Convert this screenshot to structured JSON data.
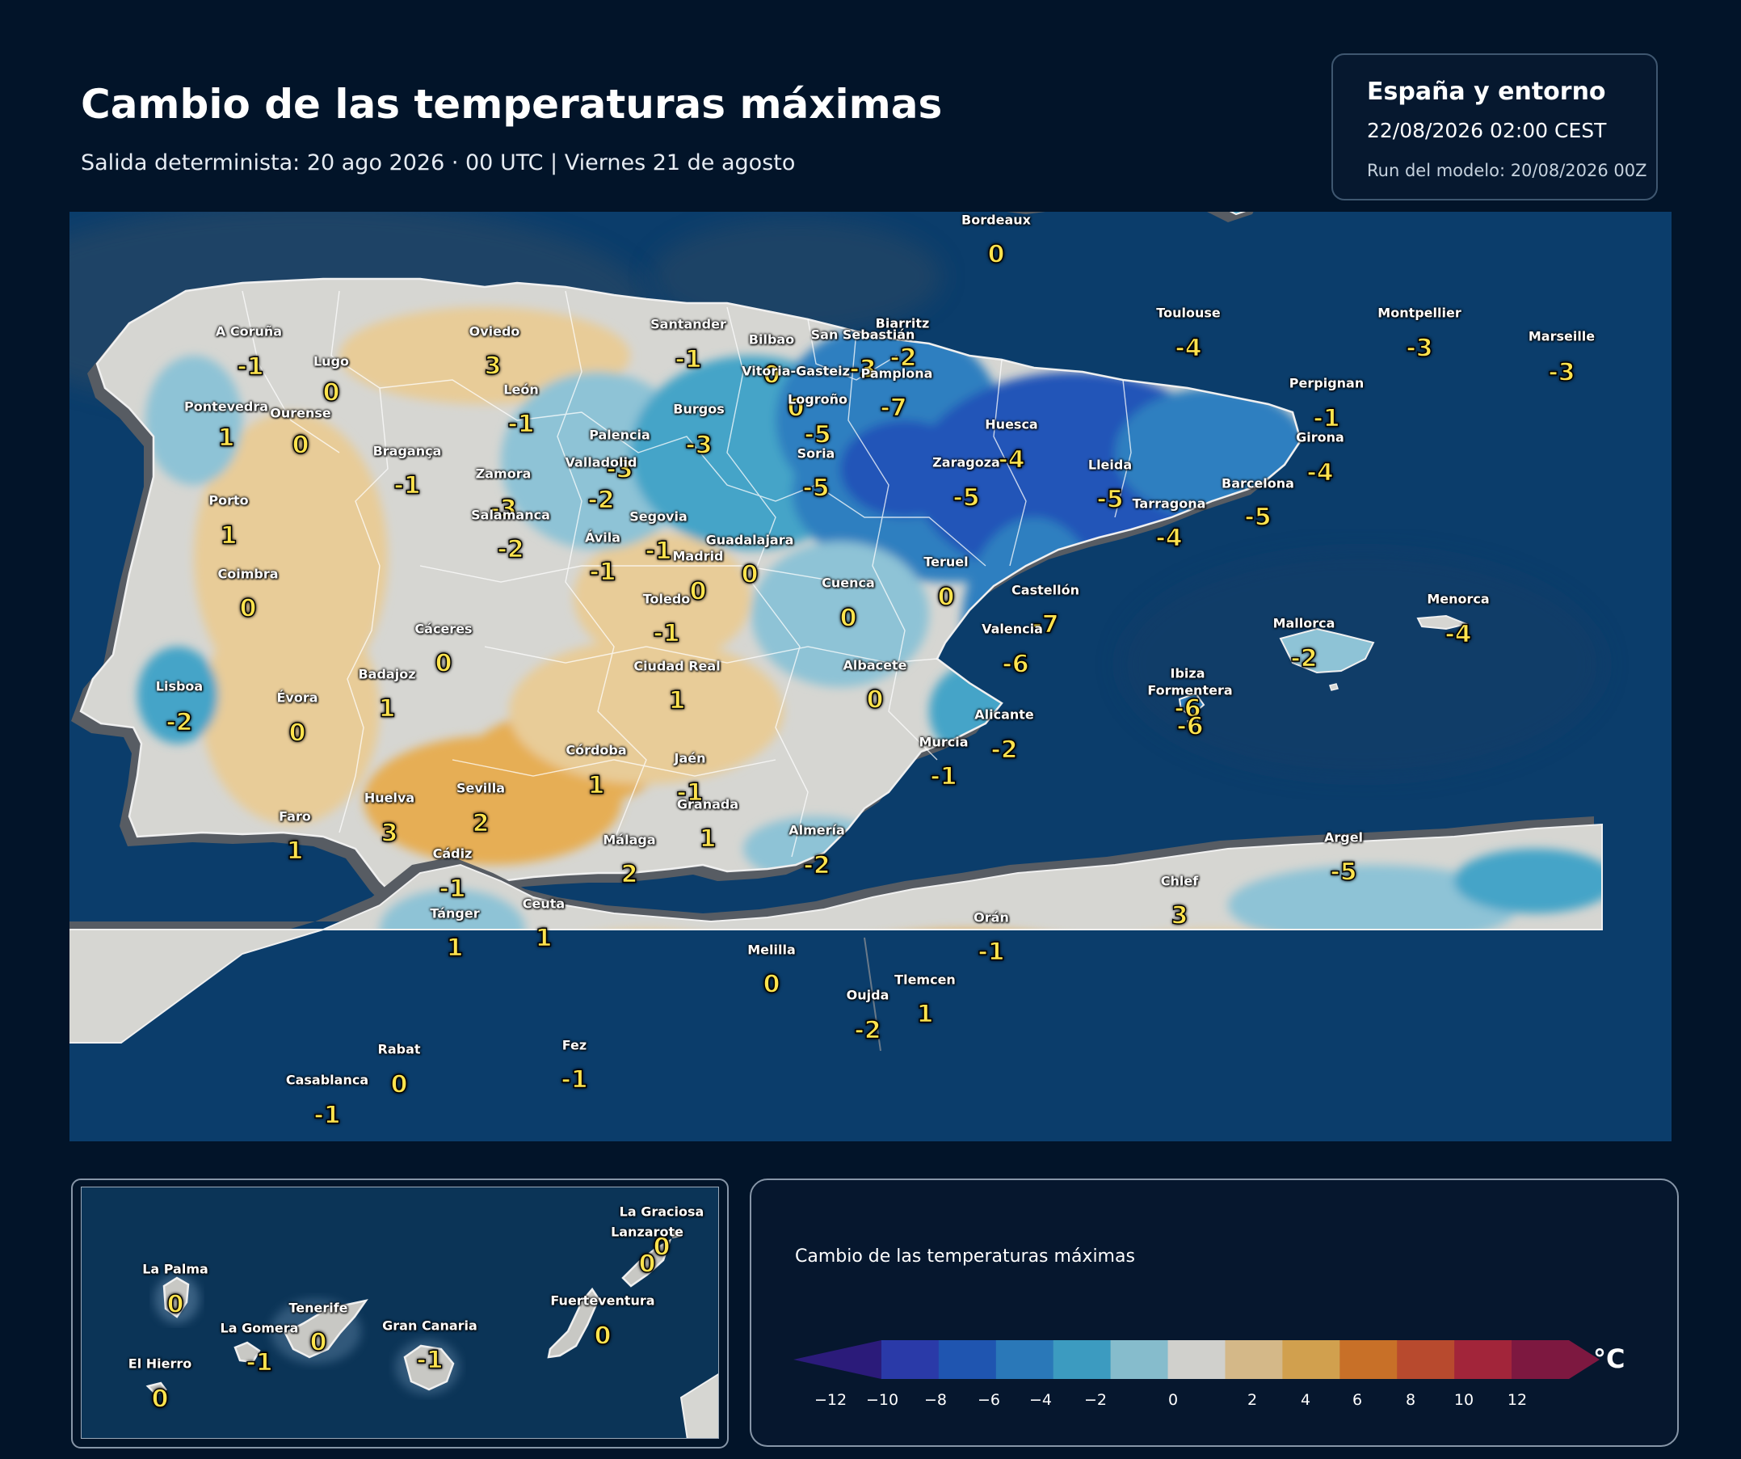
{
  "header": {
    "title": "Cambio de las temperaturas máximas",
    "subtitle": "Salida determinista: 20 ago 2026 · 00 UTC  |  Viernes 21 de agosto"
  },
  "info": {
    "region": "España y entorno",
    "datetime": "22/08/2026  02:00 CEST",
    "run": "Run del modelo: 20/08/2026 00Z"
  },
  "colors": {
    "sea": "#0b3f6e",
    "land_neutral": "#d6d6d2",
    "cool_1": "#8ec3d6",
    "cool_2": "#45a4c8",
    "cool_3": "#2f7fc0",
    "cool_4": "#2155b8",
    "warm_1": "#e8cc98",
    "warm_2": "#e6ae55",
    "value_text": "#ffe34d"
  },
  "cities": [
    {
      "name": "Bordeaux",
      "value": "0"
    },
    {
      "name": "A Coruña",
      "value": "-1"
    },
    {
      "name": "Oviedo",
      "value": "3"
    },
    {
      "name": "Santander",
      "value": "-1"
    },
    {
      "name": "Bilbao",
      "value": "0"
    },
    {
      "name": "Biarritz",
      "value": "-2"
    },
    {
      "name": "San Sebastián",
      "value": "-3"
    },
    {
      "name": "Vitoria-Gasteiz",
      "value": "0"
    },
    {
      "name": "Pamplona",
      "value": "-7"
    },
    {
      "name": "Lugo",
      "value": "0"
    },
    {
      "name": "León",
      "value": "-1"
    },
    {
      "name": "Pontevedra",
      "value": "1"
    },
    {
      "name": "Ourense",
      "value": "0"
    },
    {
      "name": "Burgos",
      "value": "-3"
    },
    {
      "name": "Logroño",
      "value": "-5"
    },
    {
      "name": "Palencia",
      "value": "-3"
    },
    {
      "name": "Soria",
      "value": "-5"
    },
    {
      "name": "Bragança",
      "value": "-1"
    },
    {
      "name": "Valladolid",
      "value": "-2"
    },
    {
      "name": "Zamora",
      "value": "-3"
    },
    {
      "name": "Huesca",
      "value": "-4"
    },
    {
      "name": "Zaragoza",
      "value": "-5"
    },
    {
      "name": "Lleida",
      "value": "-5"
    },
    {
      "name": "Toulouse",
      "value": "-4"
    },
    {
      "name": "Montpellier",
      "value": "-3"
    },
    {
      "name": "Marseille",
      "value": "-3"
    },
    {
      "name": "Perpignan",
      "value": "-1"
    },
    {
      "name": "Girona",
      "value": "-4"
    },
    {
      "name": "Barcelona",
      "value": "-5"
    },
    {
      "name": "Tarragona",
      "value": "-4"
    },
    {
      "name": "Porto",
      "value": "1"
    },
    {
      "name": "Salamanca",
      "value": "-2"
    },
    {
      "name": "Segovia",
      "value": "-1"
    },
    {
      "name": "Ávila",
      "value": "-1"
    },
    {
      "name": "Guadalajara",
      "value": "0"
    },
    {
      "name": "Madrid",
      "value": "0"
    },
    {
      "name": "Teruel",
      "value": "0"
    },
    {
      "name": "Coimbra",
      "value": "0"
    },
    {
      "name": "Cuenca",
      "value": "0"
    },
    {
      "name": "Toledo",
      "value": "-1"
    },
    {
      "name": "Castellón",
      "value": "-7"
    },
    {
      "name": "Cáceres",
      "value": "0"
    },
    {
      "name": "Valencia",
      "value": "-6"
    },
    {
      "name": "Ciudad Real",
      "value": "1"
    },
    {
      "name": "Albacete",
      "value": "0"
    },
    {
      "name": "Badajoz",
      "value": "1"
    },
    {
      "name": "Lisboa",
      "value": "-2"
    },
    {
      "name": "Évora",
      "value": "0"
    },
    {
      "name": "Alicante",
      "value": "-2"
    },
    {
      "name": "Murcia",
      "value": "-1"
    },
    {
      "name": "Córdoba",
      "value": "1"
    },
    {
      "name": "Jaén",
      "value": "-1"
    },
    {
      "name": "Sevilla",
      "value": "2"
    },
    {
      "name": "Huelva",
      "value": "3"
    },
    {
      "name": "Granada",
      "value": "1"
    },
    {
      "name": "Faro",
      "value": "1"
    },
    {
      "name": "Almería",
      "value": "-2"
    },
    {
      "name": "Málaga",
      "value": "2"
    },
    {
      "name": "Cádiz",
      "value": "-1"
    },
    {
      "name": "Tánger",
      "value": "1"
    },
    {
      "name": "Ceuta",
      "value": "1"
    },
    {
      "name": "Melilla",
      "value": "0"
    },
    {
      "name": "Orán",
      "value": "-1"
    },
    {
      "name": "Tlemcen",
      "value": "1"
    },
    {
      "name": "Oujda",
      "value": "-2"
    },
    {
      "name": "Chlef",
      "value": "3"
    },
    {
      "name": "Argel",
      "value": "-5"
    },
    {
      "name": "Rabat",
      "value": "0"
    },
    {
      "name": "Casablanca",
      "value": "-1"
    },
    {
      "name": "Fez",
      "value": "-1"
    },
    {
      "name": "Mallorca",
      "value": "-2"
    },
    {
      "name": "Menorca",
      "value": "-4"
    },
    {
      "name": "Ibiza",
      "value": "-6"
    },
    {
      "name": "Formentera",
      "value": "-6"
    }
  ],
  "canarias": [
    {
      "name": "La Graciosa",
      "value": "0"
    },
    {
      "name": "Lanzarote",
      "value": "0"
    },
    {
      "name": "La Palma",
      "value": "0"
    },
    {
      "name": "Fuerteventura",
      "value": "0"
    },
    {
      "name": "Tenerife",
      "value": "0"
    },
    {
      "name": "La Gomera",
      "value": "-1"
    },
    {
      "name": "Gran Canaria",
      "value": "-1"
    },
    {
      "name": "El Hierro",
      "value": "0"
    }
  ],
  "legend": {
    "title": "Cambio de las temperaturas máximas",
    "unit": "°C",
    "ticks": [
      "−12",
      "−10",
      "−8",
      "−6",
      "−4",
      "−2",
      "0",
      "2",
      "4",
      "6",
      "8",
      "10",
      "12"
    ],
    "colors": [
      "#2b1b7a",
      "#2a3aa8",
      "#1f55b0",
      "#2a78b8",
      "#3c9bc0",
      "#86bccc",
      "#d0d0cc",
      "#d4b888",
      "#d1a04e",
      "#c87028",
      "#b84a2e",
      "#a2253a",
      "#7d1840"
    ]
  }
}
